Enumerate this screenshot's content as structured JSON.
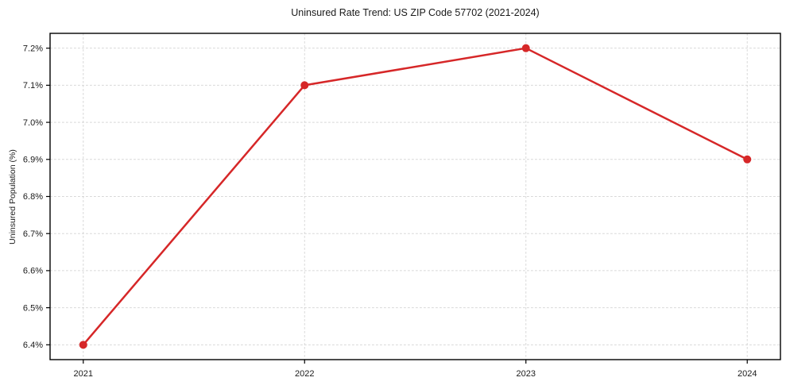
{
  "chart_data": {
    "type": "line",
    "title": "Uninsured Rate Trend: US ZIP Code 57702 (2021-2024)",
    "xlabel": "",
    "ylabel": "Uninsured Population (%)",
    "x": [
      2021,
      2022,
      2023,
      2024
    ],
    "x_tick_labels": [
      "2021",
      "2022",
      "2023",
      "2024"
    ],
    "series": [
      {
        "name": "Uninsured rate",
        "values": [
          6.4,
          7.1,
          7.2,
          6.9
        ]
      }
    ],
    "y_ticks": [
      6.4,
      6.5,
      6.6,
      6.7,
      6.8,
      6.9,
      7.0,
      7.1,
      7.2
    ],
    "y_tick_labels": [
      "6.4%",
      "6.5%",
      "6.6%",
      "6.7%",
      "6.8%",
      "6.9%",
      "7.0%",
      "7.1%",
      "7.2%"
    ],
    "xlim": [
      2020.85,
      2024.15
    ],
    "ylim": [
      6.36,
      7.24
    ],
    "grid": "dashed",
    "legend": "none",
    "colors": {
      "line": "#d62728",
      "marker": "#d62728",
      "grid": "#cccccc",
      "axis": "#000000",
      "text": "#1a1a1a",
      "background": "#ffffff"
    }
  }
}
